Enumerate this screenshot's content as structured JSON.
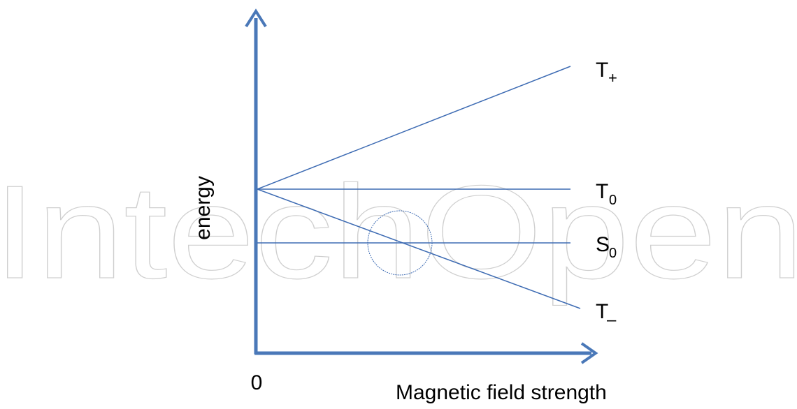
{
  "watermark": "IntechOpen",
  "axes": {
    "y_label": "energy",
    "x_label": "Magnetic field strength",
    "origin_label": "0"
  },
  "levels": {
    "t_plus": {
      "main": "T",
      "sub": "+"
    },
    "t_zero": {
      "main": "T",
      "sub": "0"
    },
    "s_zero": {
      "main": "S",
      "sub": "0"
    },
    "t_minus": {
      "main": "T",
      "sub": "–"
    }
  },
  "colors": {
    "axis": "#4a78b8",
    "line": "#3d6bb3",
    "text": "#000000",
    "watermark": "#cfcfcf"
  }
}
